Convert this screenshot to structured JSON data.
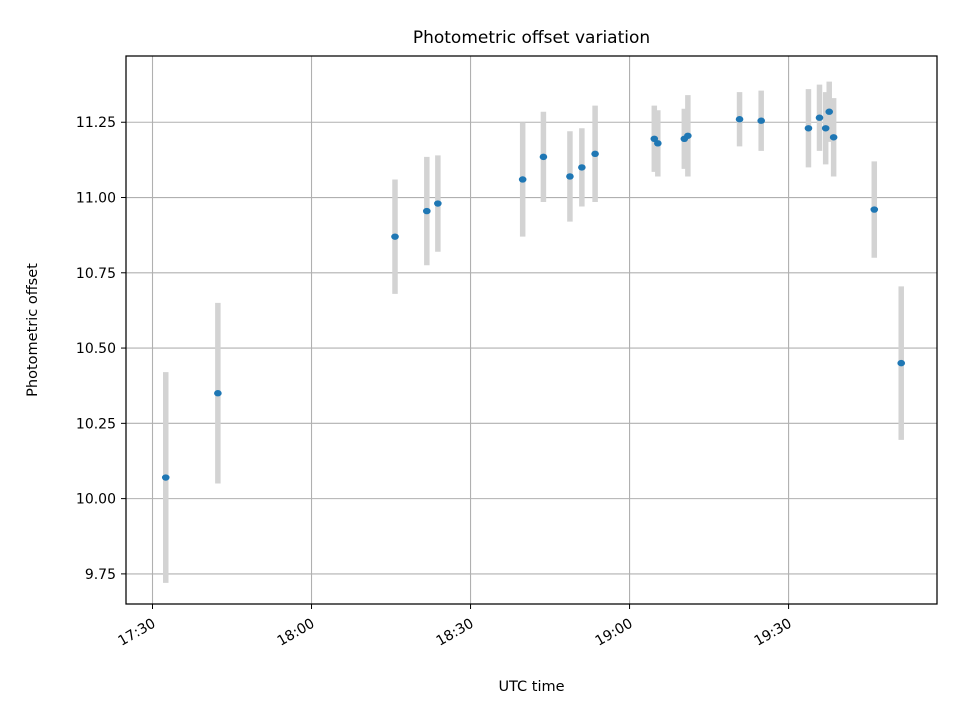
{
  "chart_data": {
    "type": "scatter",
    "title": "Photometric offset variation",
    "xlabel": "UTC time",
    "ylabel": "Photometric offset",
    "x_is_time": true,
    "xlim": [
      "17:25",
      "19:58"
    ],
    "ylim": [
      9.65,
      11.47
    ],
    "x_ticks": [
      "17:30",
      "18:00",
      "18:30",
      "19:00",
      "19:30"
    ],
    "y_ticks": [
      "9.75",
      "10.00",
      "10.25",
      "10.50",
      "10.75",
      "11.00",
      "11.25"
    ],
    "grid": true,
    "colors": {
      "point": "#1f77b4",
      "errorbar": "#d3d3d3",
      "grid": "#b0b0b0",
      "axes": "#000000"
    },
    "series": [
      {
        "points": [
          {
            "x": "17:32:30",
            "y": 10.07,
            "err": 0.35
          },
          {
            "x": "17:42:20",
            "y": 10.35,
            "err": 0.3
          },
          {
            "x": "18:15:45",
            "y": 10.87,
            "err": 0.19
          },
          {
            "x": "18:21:45",
            "y": 10.955,
            "err": 0.18
          },
          {
            "x": "18:23:50",
            "y": 10.98,
            "err": 0.16
          },
          {
            "x": "18:39:50",
            "y": 11.06,
            "err": 0.19
          },
          {
            "x": "18:43:45",
            "y": 11.135,
            "err": 0.15
          },
          {
            "x": "18:48:45",
            "y": 11.07,
            "err": 0.15
          },
          {
            "x": "18:51:00",
            "y": 11.1,
            "err": 0.13
          },
          {
            "x": "18:53:30",
            "y": 11.145,
            "err": 0.16
          },
          {
            "x": "19:04:40",
            "y": 11.195,
            "err": 0.11
          },
          {
            "x": "19:05:20",
            "y": 11.18,
            "err": 0.11
          },
          {
            "x": "19:10:20",
            "y": 11.195,
            "err": 0.1
          },
          {
            "x": "19:11:00",
            "y": 11.205,
            "err": 0.135
          },
          {
            "x": "19:20:45",
            "y": 11.26,
            "err": 0.09
          },
          {
            "x": "19:24:50",
            "y": 11.255,
            "err": 0.1
          },
          {
            "x": "19:33:45",
            "y": 11.23,
            "err": 0.13
          },
          {
            "x": "19:35:50",
            "y": 11.265,
            "err": 0.11
          },
          {
            "x": "19:37:00",
            "y": 11.23,
            "err": 0.12
          },
          {
            "x": "19:37:40",
            "y": 11.285,
            "err": 0.1
          },
          {
            "x": "19:38:30",
            "y": 11.2,
            "err": 0.13
          },
          {
            "x": "19:46:10",
            "y": 10.96,
            "err": 0.16
          },
          {
            "x": "19:51:15",
            "y": 10.45,
            "err": 0.255
          }
        ]
      }
    ]
  }
}
